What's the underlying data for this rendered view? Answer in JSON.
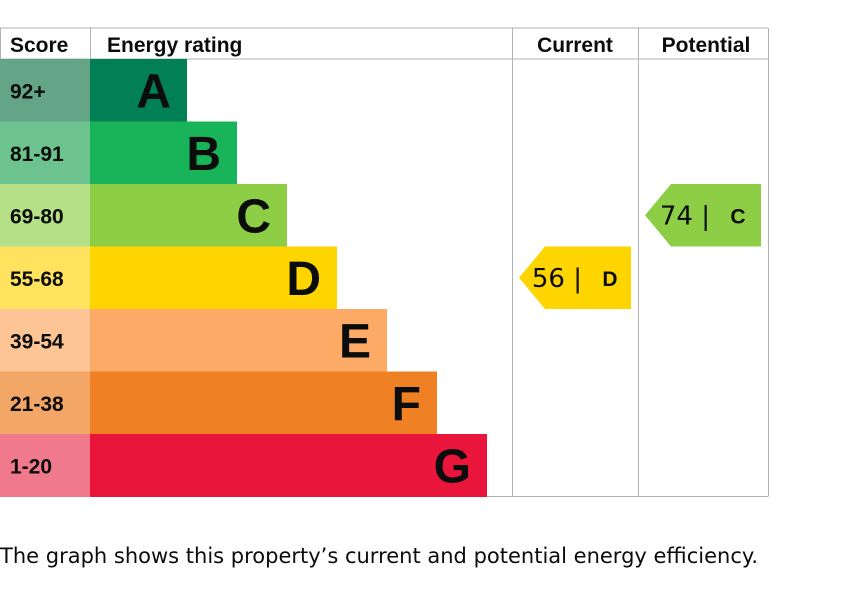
{
  "chart_data": {
    "type": "bar",
    "headers": {
      "score": "Score",
      "rating": "Energy rating",
      "current": "Current",
      "potential": "Potential"
    },
    "bands": [
      {
        "letter": "A",
        "range": "92+",
        "score_min": 92,
        "color": "#008054",
        "score_color": "#64a487"
      },
      {
        "letter": "B",
        "range": "81-91",
        "score_min": 81,
        "color": "#19b459",
        "score_color": "#6dc38e"
      },
      {
        "letter": "C",
        "range": "69-80",
        "score_min": 69,
        "color": "#8dce46",
        "score_color": "#b6e088"
      },
      {
        "letter": "D",
        "range": "55-68",
        "score_min": 55,
        "color": "#ffd500",
        "score_color": "#ffe35e"
      },
      {
        "letter": "E",
        "range": "39-54",
        "score_min": 39,
        "color": "#fcaa65",
        "score_color": "#fdc496"
      },
      {
        "letter": "F",
        "range": "21-38",
        "score_min": 21,
        "color": "#ef8023",
        "score_color": "#f3a767"
      },
      {
        "letter": "G",
        "range": "1-20",
        "score_min": 1,
        "color": "#e9153b",
        "score_color": "#f07a8c"
      }
    ],
    "current": {
      "score": "56",
      "letter": "D",
      "band": "D",
      "color": "#ffd500"
    },
    "potential": {
      "score": "74",
      "letter": "C",
      "band": "C",
      "color": "#8dce46"
    }
  },
  "caption": "The graph shows this property’s current and potential energy efficiency."
}
